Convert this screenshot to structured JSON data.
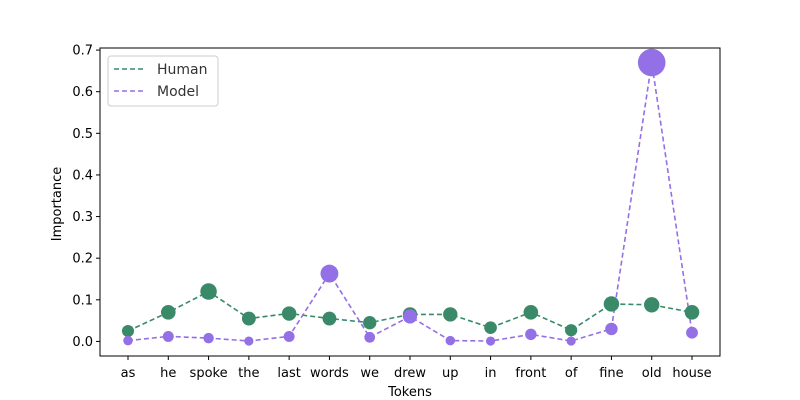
{
  "chart_data": {
    "type": "line",
    "xlabel": "Tokens",
    "ylabel": "Importance",
    "categories": [
      "as",
      "he",
      "spoke",
      "the",
      "last",
      "words",
      "we",
      "drew",
      "up",
      "in",
      "front",
      "of",
      "fine",
      "old",
      "house"
    ],
    "ylim": [
      -0.035,
      0.705
    ],
    "yticks": [
      0.0,
      0.1,
      0.2,
      0.3,
      0.4,
      0.5,
      0.6,
      0.7
    ],
    "ytick_labels": [
      "0.0",
      "0.1",
      "0.2",
      "0.3",
      "0.4",
      "0.5",
      "0.6",
      "0.7"
    ],
    "grid": false,
    "legend_position": "upper-left",
    "series": [
      {
        "name": "Human",
        "color": "#3a8a6a",
        "line_style": "dashed",
        "values": [
          0.025,
          0.07,
          0.12,
          0.055,
          0.067,
          0.055,
          0.045,
          0.065,
          0.065,
          0.033,
          0.07,
          0.027,
          0.09,
          0.088,
          0.07
        ]
      },
      {
        "name": "Model",
        "color": "#9370e6",
        "line_style": "dashed",
        "values": [
          0.002,
          0.012,
          0.008,
          0.001,
          0.012,
          0.163,
          0.01,
          0.06,
          0.002,
          0.001,
          0.017,
          0.001,
          0.03,
          0.67,
          0.021
        ]
      }
    ]
  }
}
